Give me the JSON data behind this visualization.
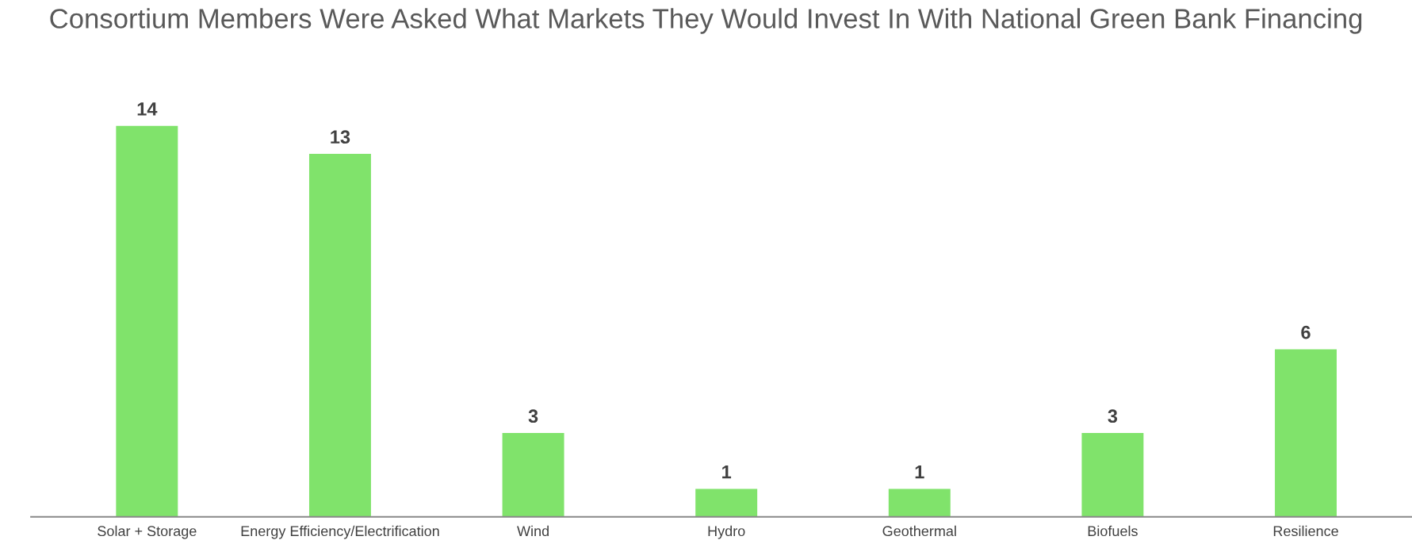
{
  "chart_data": {
    "type": "bar",
    "title": "Consortium Members Were Asked What Markets They Would Invest In With National Green Bank Financing",
    "categories": [
      "Solar + Storage",
      "Energy Efficiency/Electrification",
      "Wind",
      "Hydro",
      "Geothermal",
      "Biofuels",
      "Resilience"
    ],
    "values": [
      14,
      13,
      3,
      1,
      1,
      3,
      6
    ],
    "color": "#80e36b",
    "data_labels": true,
    "grid": false,
    "legend": false
  }
}
